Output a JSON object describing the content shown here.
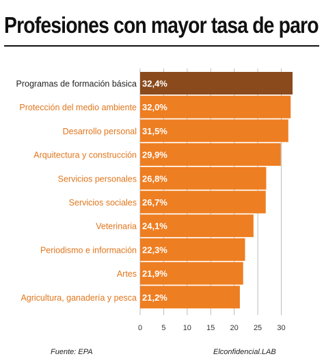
{
  "chart_data": {
    "type": "bar",
    "orientation": "horizontal",
    "title": "Profesiones con mayor tasa de paro",
    "categories": [
      "Programas de formación básica",
      "Protección del medio ambiente",
      "Desarrollo personal",
      "Arquitectura y construcción",
      "Servicios personales",
      "Servicios sociales",
      "Veterinaria",
      "Periodismo e información",
      "Artes",
      "Agricultura, ganadería y pesca"
    ],
    "values": [
      32.4,
      32.0,
      31.5,
      29.9,
      26.8,
      26.7,
      24.1,
      22.3,
      21.9,
      21.2
    ],
    "value_labels": [
      "32,4%",
      "32,0%",
      "31,5%",
      "29,9%",
      "26,8%",
      "26,7%",
      "24,1%",
      "22,3%",
      "21,9%",
      "21,2%"
    ],
    "xlim": [
      0,
      32.4
    ],
    "x_ticks": [
      "0",
      "5",
      "10",
      "15",
      "20",
      "25",
      "30"
    ],
    "grid": true,
    "highlight_index": 0
  },
  "colors": {
    "bar": "#ee7e22",
    "bar_highlight": "#8a4a1c",
    "label": "#e0761d",
    "label_highlight": "#222222",
    "grid": "#bbbbbb"
  },
  "footer": {
    "source": "Fuente: EPA",
    "brand": "Elconfidencial.LAB"
  }
}
